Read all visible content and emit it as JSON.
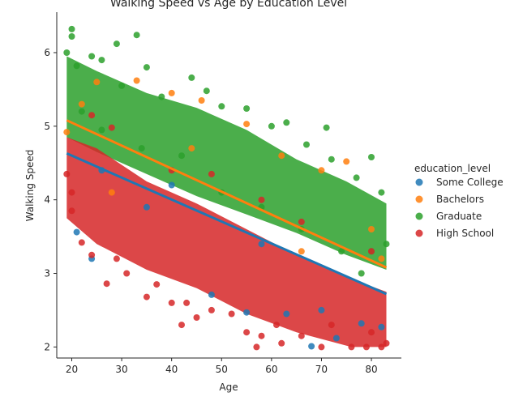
{
  "chart_data": {
    "type": "scatter",
    "title": "Walking Speed vs Age by Education Level",
    "xlabel": "Age",
    "ylabel": "Walking Speed",
    "xlim": [
      17,
      86
    ],
    "ylim": [
      1.85,
      6.55
    ],
    "xticks": [
      20,
      30,
      40,
      50,
      60,
      70,
      80
    ],
    "yticks": [
      2,
      3,
      4,
      5,
      6
    ],
    "grid": false,
    "legend": {
      "title": "education_level",
      "placement": "right",
      "entries": [
        "Some College",
        "Bachelors",
        "Graduate",
        "High School"
      ]
    },
    "series": [
      {
        "name": "Some College",
        "color": "#1f77b4",
        "regression": {
          "x": [
            19,
            83
          ],
          "y": [
            4.63,
            2.72
          ]
        },
        "points": [
          [
            21,
            3.56
          ],
          [
            24,
            3.2
          ],
          [
            35,
            3.9
          ],
          [
            48,
            2.71
          ],
          [
            55,
            2.47
          ],
          [
            63,
            2.45
          ],
          [
            68,
            2.01
          ],
          [
            73,
            2.12
          ],
          [
            78,
            2.32
          ],
          [
            82,
            2.27
          ],
          [
            26,
            4.4
          ],
          [
            40,
            4.2
          ],
          [
            58,
            3.4
          ],
          [
            70,
            2.5
          ]
        ]
      },
      {
        "name": "Bachelors",
        "color": "#ff7f0e",
        "regression": {
          "x": [
            19,
            83
          ],
          "y": [
            5.08,
            3.08
          ]
        },
        "points": [
          [
            19,
            4.92
          ],
          [
            22,
            5.3
          ],
          [
            25,
            5.6
          ],
          [
            33,
            5.62
          ],
          [
            40,
            5.45
          ],
          [
            46,
            5.35
          ],
          [
            55,
            5.03
          ],
          [
            62,
            4.6
          ],
          [
            70,
            4.4
          ],
          [
            75,
            4.52
          ],
          [
            80,
            3.6
          ],
          [
            82,
            3.2
          ],
          [
            28,
            4.1
          ],
          [
            44,
            4.7
          ],
          [
            66,
            3.3
          ]
        ]
      },
      {
        "name": "Graduate",
        "color": "#2ca02c",
        "regression": null,
        "points": [
          [
            19,
            6.0
          ],
          [
            20,
            6.32
          ],
          [
            20,
            6.22
          ],
          [
            21,
            5.82
          ],
          [
            24,
            5.95
          ],
          [
            26,
            5.9
          ],
          [
            29,
            6.12
          ],
          [
            33,
            6.24
          ],
          [
            30,
            5.55
          ],
          [
            35,
            5.8
          ],
          [
            38,
            5.4
          ],
          [
            44,
            5.66
          ],
          [
            47,
            5.48
          ],
          [
            50,
            5.27
          ],
          [
            55,
            5.24
          ],
          [
            60,
            5.0
          ],
          [
            63,
            5.05
          ],
          [
            67,
            4.75
          ],
          [
            71,
            4.98
          ],
          [
            72,
            4.55
          ],
          [
            77,
            4.3
          ],
          [
            80,
            4.58
          ],
          [
            82,
            4.1
          ],
          [
            83,
            3.4
          ],
          [
            80,
            3.3
          ],
          [
            22,
            5.2
          ],
          [
            26,
            4.95
          ],
          [
            34,
            4.7
          ],
          [
            42,
            4.6
          ],
          [
            50,
            4.1
          ],
          [
            58,
            3.9
          ],
          [
            66,
            3.6
          ],
          [
            74,
            3.3
          ],
          [
            78,
            3.0
          ]
        ]
      },
      {
        "name": "High School",
        "color": "#d62728",
        "regression": null,
        "points": [
          [
            19,
            4.35
          ],
          [
            20,
            4.1
          ],
          [
            20,
            3.85
          ],
          [
            22,
            3.42
          ],
          [
            24,
            3.25
          ],
          [
            27,
            2.86
          ],
          [
            29,
            3.2
          ],
          [
            31,
            3.0
          ],
          [
            35,
            2.68
          ],
          [
            37,
            2.85
          ],
          [
            40,
            2.6
          ],
          [
            42,
            2.3
          ],
          [
            43,
            2.6
          ],
          [
            45,
            2.4
          ],
          [
            48,
            2.5
          ],
          [
            52,
            2.45
          ],
          [
            55,
            2.2
          ],
          [
            57,
            2.0
          ],
          [
            58,
            2.15
          ],
          [
            61,
            2.3
          ],
          [
            62,
            2.05
          ],
          [
            66,
            2.15
          ],
          [
            70,
            2.0
          ],
          [
            72,
            2.3
          ],
          [
            76,
            2.0
          ],
          [
            79,
            2.0
          ],
          [
            80,
            2.2
          ],
          [
            82,
            2.0
          ],
          [
            83,
            2.05
          ],
          [
            24,
            5.15
          ],
          [
            28,
            4.98
          ],
          [
            40,
            4.4
          ],
          [
            48,
            4.35
          ],
          [
            58,
            4.0
          ],
          [
            66,
            3.7
          ],
          [
            80,
            3.3
          ]
        ]
      }
    ]
  }
}
